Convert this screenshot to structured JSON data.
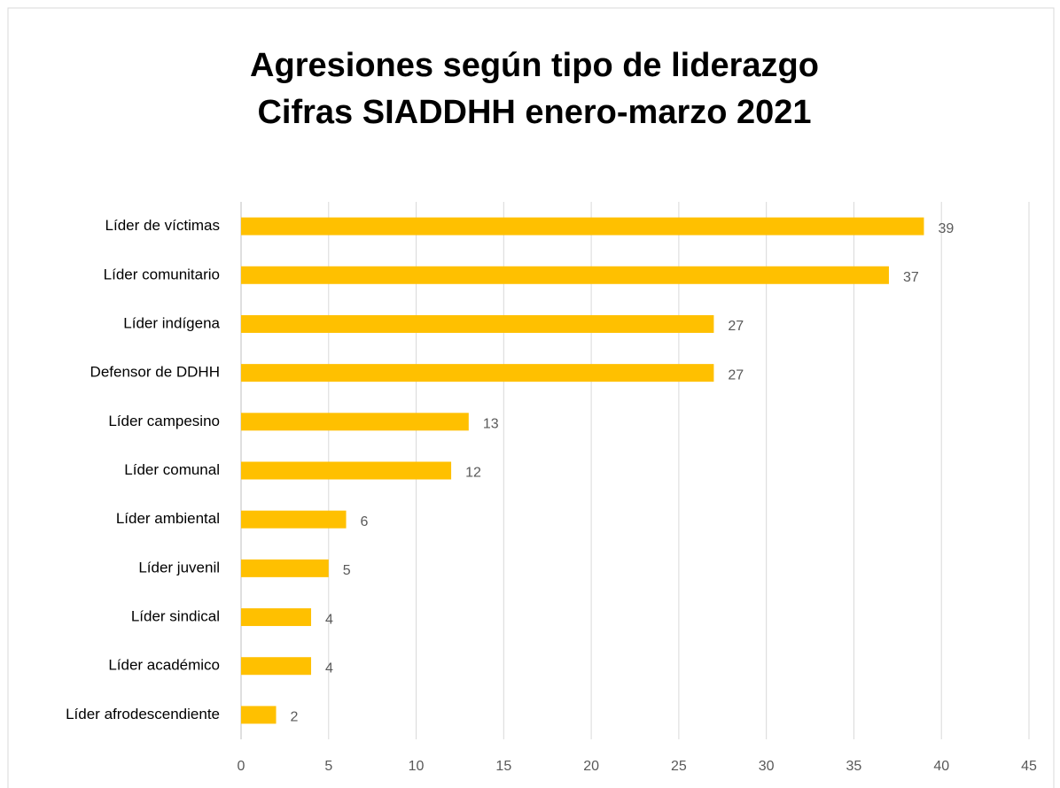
{
  "chart_data": {
    "type": "bar",
    "orientation": "horizontal",
    "title": "Agresiones según tipo de liderazgo",
    "subtitle": "Cifras SIADDHH enero-marzo 2021",
    "categories": [
      "Líder de víctimas",
      "Líder comunitario",
      "Líder indígena",
      "Defensor de DDHH",
      "Líder campesino",
      "Líder comunal",
      "Líder ambiental",
      "Líder juvenil",
      "Líder sindical",
      "Líder académico",
      "Líder afrodescendiente"
    ],
    "values": [
      39,
      37,
      27,
      27,
      13,
      12,
      6,
      5,
      4,
      4,
      2
    ],
    "color": "#ffc000",
    "xlim": [
      0,
      45
    ],
    "xticks": [
      0,
      5,
      10,
      15,
      20,
      25,
      30,
      35,
      40,
      45
    ],
    "grid": true
  }
}
